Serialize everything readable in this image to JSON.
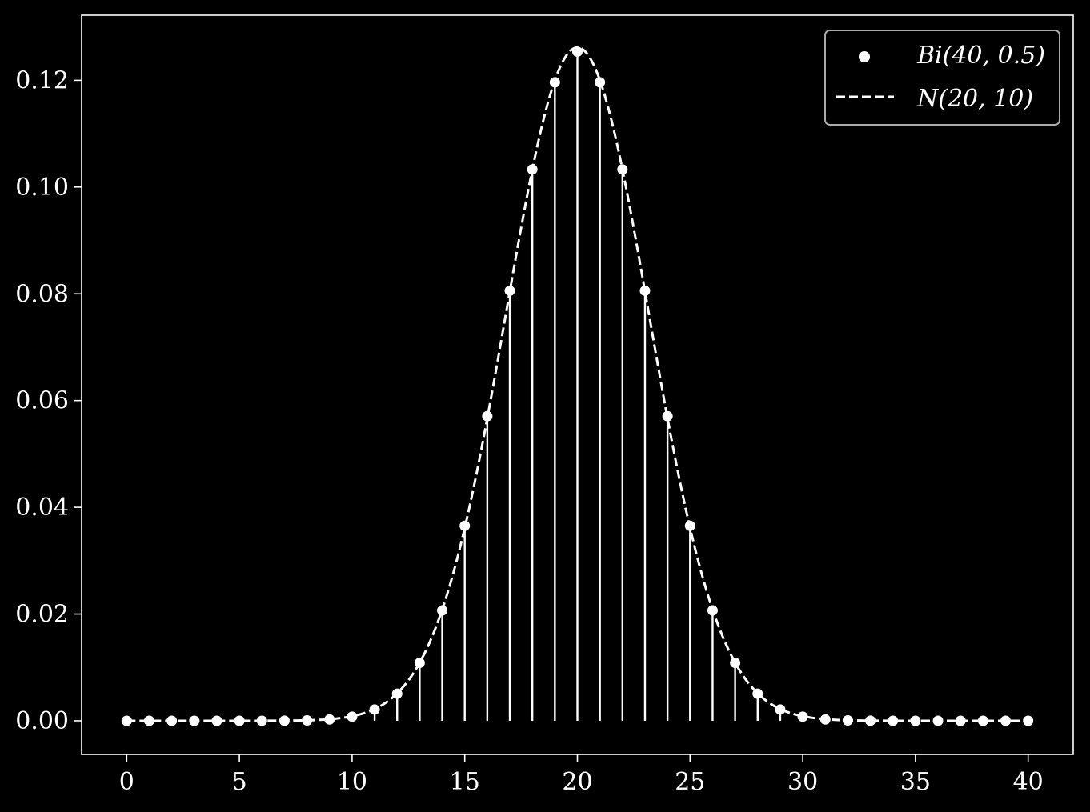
{
  "chart_data": {
    "type": "scatter",
    "title": "",
    "xlabel": "",
    "ylabel": "",
    "xlim": [
      -2,
      42
    ],
    "ylim": [
      -0.0063,
      0.1322
    ],
    "x_ticks": [
      0,
      5,
      10,
      15,
      20,
      25,
      30,
      35,
      40
    ],
    "x_tick_labels": [
      "0",
      "5",
      "10",
      "15",
      "20",
      "25",
      "30",
      "35",
      "40"
    ],
    "y_ticks": [
      0.0,
      0.02,
      0.04,
      0.06,
      0.08,
      0.1,
      0.12
    ],
    "y_tick_labels": [
      "0.00",
      "0.02",
      "0.04",
      "0.06",
      "0.08",
      "0.10",
      "0.12"
    ],
    "grid": false,
    "legend_position": "top-right",
    "colors": {
      "background": "#000000",
      "foreground": "#ffffff",
      "legend_border": "#aaaaaa"
    },
    "series": [
      {
        "name": "Bi(40, 0.5)",
        "style": "points-with-stems",
        "x": [
          0,
          1,
          2,
          3,
          4,
          5,
          6,
          7,
          8,
          9,
          10,
          11,
          12,
          13,
          14,
          15,
          16,
          17,
          18,
          19,
          20,
          21,
          22,
          23,
          24,
          25,
          26,
          27,
          28,
          29,
          30,
          31,
          32,
          33,
          34,
          35,
          36,
          37,
          38,
          39,
          40
        ],
        "values": [
          0.0,
          0.0,
          0.0,
          0.0,
          0.0,
          0.0,
          3.5e-06,
          1.7e-05,
          7e-05,
          0.0002488,
          0.0007716,
          0.0021046,
          0.0050726,
          0.0108554,
          0.0206753,
          0.0365261,
          0.057072,
          0.0805724,
          0.1033008,
          0.119632,
          0.1253689,
          0.119632,
          0.1033008,
          0.0805724,
          0.057072,
          0.0365261,
          0.0206753,
          0.0108554,
          0.0050726,
          0.0021046,
          0.0007716,
          0.0002488,
          7e-05,
          1.7e-05,
          3.5e-06,
          0.0,
          0.0,
          0.0,
          0.0,
          0.0,
          0.0
        ]
      },
      {
        "name": "N(20, 10)",
        "style": "dashed-line",
        "mean": 20,
        "variance": 10,
        "x_range": [
          0,
          40
        ]
      }
    ]
  }
}
